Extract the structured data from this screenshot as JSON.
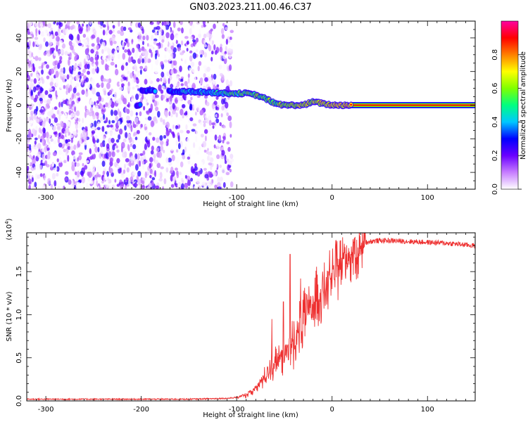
{
  "page_title": "GN03.2023.211.00.46.C37",
  "chart_data": [
    {
      "type": "heatmap",
      "xlabel": "Height of straight line (km)",
      "ylabel": "Frequency (Hz)",
      "xlim": [
        -320,
        150
      ],
      "ylim": [
        -50,
        50
      ],
      "x_ticks": [
        -300,
        -200,
        -100,
        0,
        100
      ],
      "y_ticks": [
        -40,
        -20,
        0,
        20,
        40
      ],
      "colorbar": {
        "label": "Normalized spectral amplitude",
        "range": [
          0,
          1
        ],
        "ticks": [
          0.0,
          0.2,
          0.4,
          0.6,
          0.8
        ],
        "tick_labels": [
          "0.0",
          "0.2",
          "0.4",
          "0.6",
          "0.8"
        ],
        "colors": [
          "#ffffff",
          "#c77dff",
          "#6a00ff",
          "#0000ff",
          "#00c8ff",
          "#00ff80",
          "#80ff00",
          "#ffff00",
          "#ff8000",
          "#ff0000",
          "#ff00a0"
        ]
      },
      "noise_region_x": [
        -320,
        -105
      ],
      "signal_trace": [
        {
          "x": -200,
          "y": 9
        },
        {
          "x": -170,
          "y": 8
        },
        {
          "x": -140,
          "y": 8
        },
        {
          "x": -110,
          "y": 7
        },
        {
          "x": -90,
          "y": 7
        },
        {
          "x": -80,
          "y": 6
        },
        {
          "x": -70,
          "y": 4
        },
        {
          "x": -60,
          "y": 1
        },
        {
          "x": -50,
          "y": 0
        },
        {
          "x": -40,
          "y": 0
        },
        {
          "x": -30,
          "y": 0
        },
        {
          "x": -20,
          "y": 2
        },
        {
          "x": -10,
          "y": 1
        },
        {
          "x": 0,
          "y": 0
        },
        {
          "x": 20,
          "y": 0
        },
        {
          "x": 150,
          "y": 0
        }
      ],
      "grid": false
    },
    {
      "type": "line",
      "xlabel": "Height of straight line (km)",
      "ylabel": "SNR (10 * v/v)",
      "y_multiplier": "(x10",
      "y_multiplier_exp": "4",
      "xlim": [
        -320,
        150
      ],
      "ylim": [
        0,
        1.95
      ],
      "x_ticks": [
        -300,
        -200,
        -100,
        0,
        100
      ],
      "y_ticks": [
        0.0,
        0.5,
        1.0,
        1.5
      ],
      "y_tick_labels": [
        "0.0",
        "0.5",
        "1.0",
        "1.5"
      ],
      "series": [
        {
          "color": "#ee3030",
          "x": [
            -320,
            -300,
            -250,
            -200,
            -150,
            -110,
            -100,
            -90,
            -80,
            -70,
            -65,
            -60,
            -55,
            -50,
            -45,
            -40,
            -35,
            -30,
            -25,
            -20,
            -15,
            -10,
            -5,
            0,
            5,
            10,
            15,
            20,
            25,
            30,
            35,
            40,
            50,
            60,
            80,
            100,
            120,
            150
          ],
          "y": [
            0.02,
            0.02,
            0.02,
            0.02,
            0.02,
            0.03,
            0.04,
            0.07,
            0.15,
            0.3,
            0.4,
            0.45,
            0.5,
            0.55,
            0.6,
            0.72,
            0.85,
            0.95,
            1.05,
            1.15,
            1.25,
            1.3,
            1.38,
            1.45,
            1.55,
            1.62,
            1.68,
            1.72,
            1.78,
            1.82,
            1.84,
            1.85,
            1.86,
            1.86,
            1.85,
            1.84,
            1.83,
            1.8
          ]
        }
      ],
      "spikes": [
        {
          "x": -63,
          "y": 0.95
        },
        {
          "x": -51,
          "y": 1.15
        },
        {
          "x": -44,
          "y": 1.7
        },
        {
          "x": -33,
          "y": 1.42
        },
        {
          "x": -28,
          "y": 1.25
        },
        {
          "x": -10,
          "y": 1.5
        }
      ],
      "grid": false
    }
  ]
}
